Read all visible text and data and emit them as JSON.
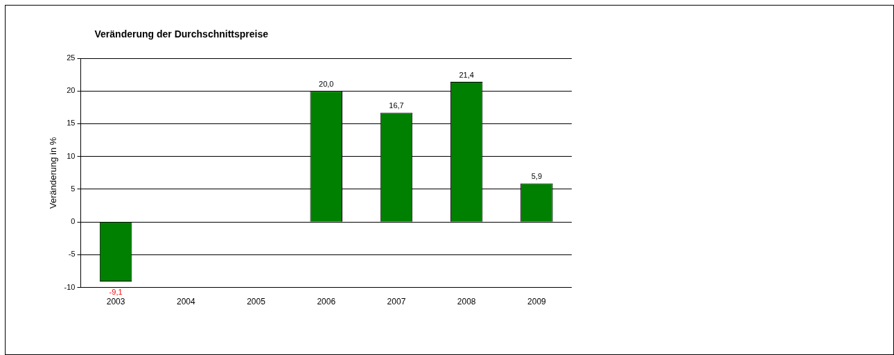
{
  "chart_data": {
    "type": "bar",
    "title": "Veränderung der Durchschnittspreise",
    "ylabel": "Veränderung in %",
    "categories": [
      "2003",
      "2004",
      "2005",
      "2006",
      "2007",
      "2008",
      "2009"
    ],
    "values": [
      -9.1,
      null,
      null,
      20.0,
      16.7,
      21.4,
      5.9
    ],
    "value_labels": [
      "-9,1",
      null,
      null,
      "20,0",
      "16,7",
      "21,4",
      "5,9"
    ],
    "color": "#008000",
    "ylim": [
      -10,
      25
    ],
    "yticks": [
      -10,
      -5,
      0,
      5,
      10,
      15,
      20,
      25
    ],
    "grid": "y",
    "legend": false
  }
}
